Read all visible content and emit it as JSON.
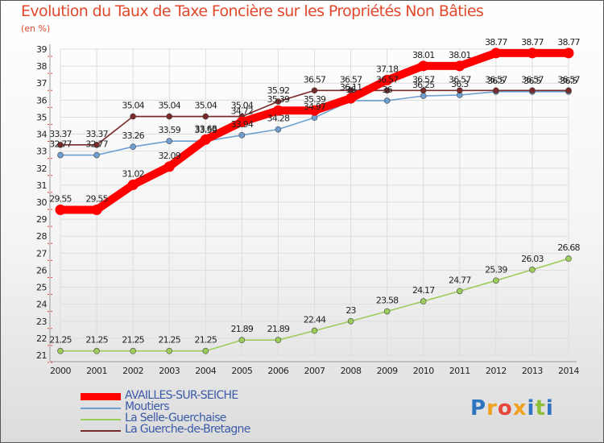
{
  "chart_data": {
    "type": "line",
    "title": "Evolution du Taux de Taxe Foncière sur les Propriétés Non Bâties",
    "ylabel": "(en %)",
    "xlabel": "",
    "ylim": [
      21,
      39
    ],
    "yticks": [
      21,
      22,
      23,
      24,
      25,
      26,
      27,
      28,
      29,
      30,
      31,
      32,
      33,
      34,
      35,
      36,
      37,
      38,
      39
    ],
    "categories": [
      "2000",
      "2001",
      "2002",
      "2003",
      "2004",
      "2005",
      "2006",
      "2007",
      "2008",
      "2009",
      "2010",
      "2011",
      "2012",
      "2013",
      "2014"
    ],
    "series": [
      {
        "name": "AVAILLES-SUR-SEICHE",
        "color": "#ff0000",
        "values": [
          29.55,
          29.55,
          31.02,
          32.09,
          33.68,
          34.72,
          35.39,
          35.39,
          36.11,
          37.18,
          38.01,
          38.01,
          38.77,
          38.77,
          38.77
        ],
        "labels": [
          "29.55",
          "29.55",
          "31.02",
          "32.09",
          "33.68",
          "34.72",
          "35.39",
          "35.39",
          "36.11",
          "37.18",
          "38.01",
          "38.01",
          "38.77",
          "38.77",
          "38.77"
        ]
      },
      {
        "name": "Moutiers",
        "color": "#6e9fd0",
        "values": [
          32.77,
          32.77,
          33.26,
          33.59,
          33.59,
          33.94,
          34.28,
          34.97,
          35.97,
          35.97,
          36.25,
          36.3,
          36.5,
          36.5,
          36.5
        ],
        "labels": [
          "32.77",
          "32.77",
          "33.26",
          "33.59",
          "33.59",
          "33.94",
          "34.28",
          "34.97",
          "36",
          "36",
          "36.25",
          "36.3",
          "36.5",
          "36.5",
          "36.5"
        ]
      },
      {
        "name": "La Selle-Guerchaise",
        "color": "#9ccc5a",
        "values": [
          21.25,
          21.25,
          21.25,
          21.25,
          21.25,
          21.89,
          21.89,
          22.44,
          23,
          23.58,
          24.17,
          24.77,
          25.39,
          26.03,
          26.68
        ],
        "labels": [
          "21.25",
          "21.25",
          "21.25",
          "21.25",
          "21.25",
          "21.89",
          "21.89",
          "22.44",
          "23",
          "23.58",
          "24.17",
          "24.77",
          "25.39",
          "26.03",
          "26.68"
        ]
      },
      {
        "name": "La Guerche-de-Bretagne",
        "color": "#7a2a2a",
        "values": [
          33.37,
          33.37,
          35.04,
          35.04,
          35.04,
          35.04,
          35.92,
          36.57,
          36.57,
          36.57,
          36.57,
          36.57,
          36.57,
          36.57,
          36.57
        ],
        "labels": [
          "33.37",
          "33.37",
          "35.04",
          "35.04",
          "35.04",
          "35.04",
          "35.92",
          "36.57",
          "36.57",
          "36.57",
          "36.57",
          "36.57",
          "36.57",
          "36.57",
          "36.57"
        ]
      }
    ],
    "grid": true,
    "legend": "bottom-left"
  },
  "legend": {
    "items": [
      {
        "label": "AVAILLES-SUR-SEICHE",
        "color": "#ff0000"
      },
      {
        "label": "Moutiers",
        "color": "#6e9fd0"
      },
      {
        "label": "La Selle-Guerchaise",
        "color": "#9ccc5a"
      },
      {
        "label": "La Guerche-de-Bretagne",
        "color": "#7a2a2a"
      }
    ]
  },
  "logo": {
    "letters": [
      "P",
      "r",
      "o",
      "x",
      "i",
      "t",
      "i"
    ],
    "colors": [
      "#2f74c0",
      "#f0a21e",
      "#e5483a",
      "#f0a21e",
      "#2f74c0",
      "#8cbf3a",
      "#2f74c0"
    ]
  }
}
